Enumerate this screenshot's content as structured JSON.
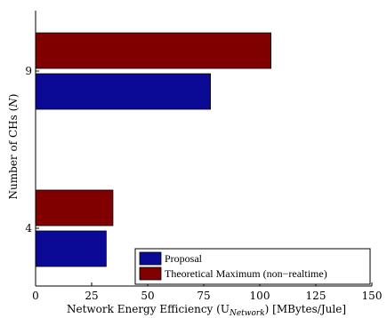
{
  "chart_data": {
    "type": "bar",
    "orientation": "horizontal",
    "xlabel": "Network Energy Efficiency (U",
    "xlabel_subscript": "Network",
    "xlabel_suffix": ") [MBytes/Jule]",
    "ylabel": "Number of CHs (",
    "ylabel_var": "N",
    "ylabel_suffix": ")",
    "xlim": [
      0,
      150
    ],
    "xticks": [
      "0",
      "25",
      "50",
      "75",
      "100",
      "125",
      "150"
    ],
    "categories": [
      "4",
      "9"
    ],
    "series": [
      {
        "name": "Proposal",
        "color": "#0a0a96",
        "values": [
          31.5,
          78
        ]
      },
      {
        "name": "Theoretical Maximum (non−realtime)",
        "color": "#800000",
        "values": [
          34.5,
          105
        ]
      }
    ],
    "legend_position": "bottom-right",
    "grid": false
  }
}
